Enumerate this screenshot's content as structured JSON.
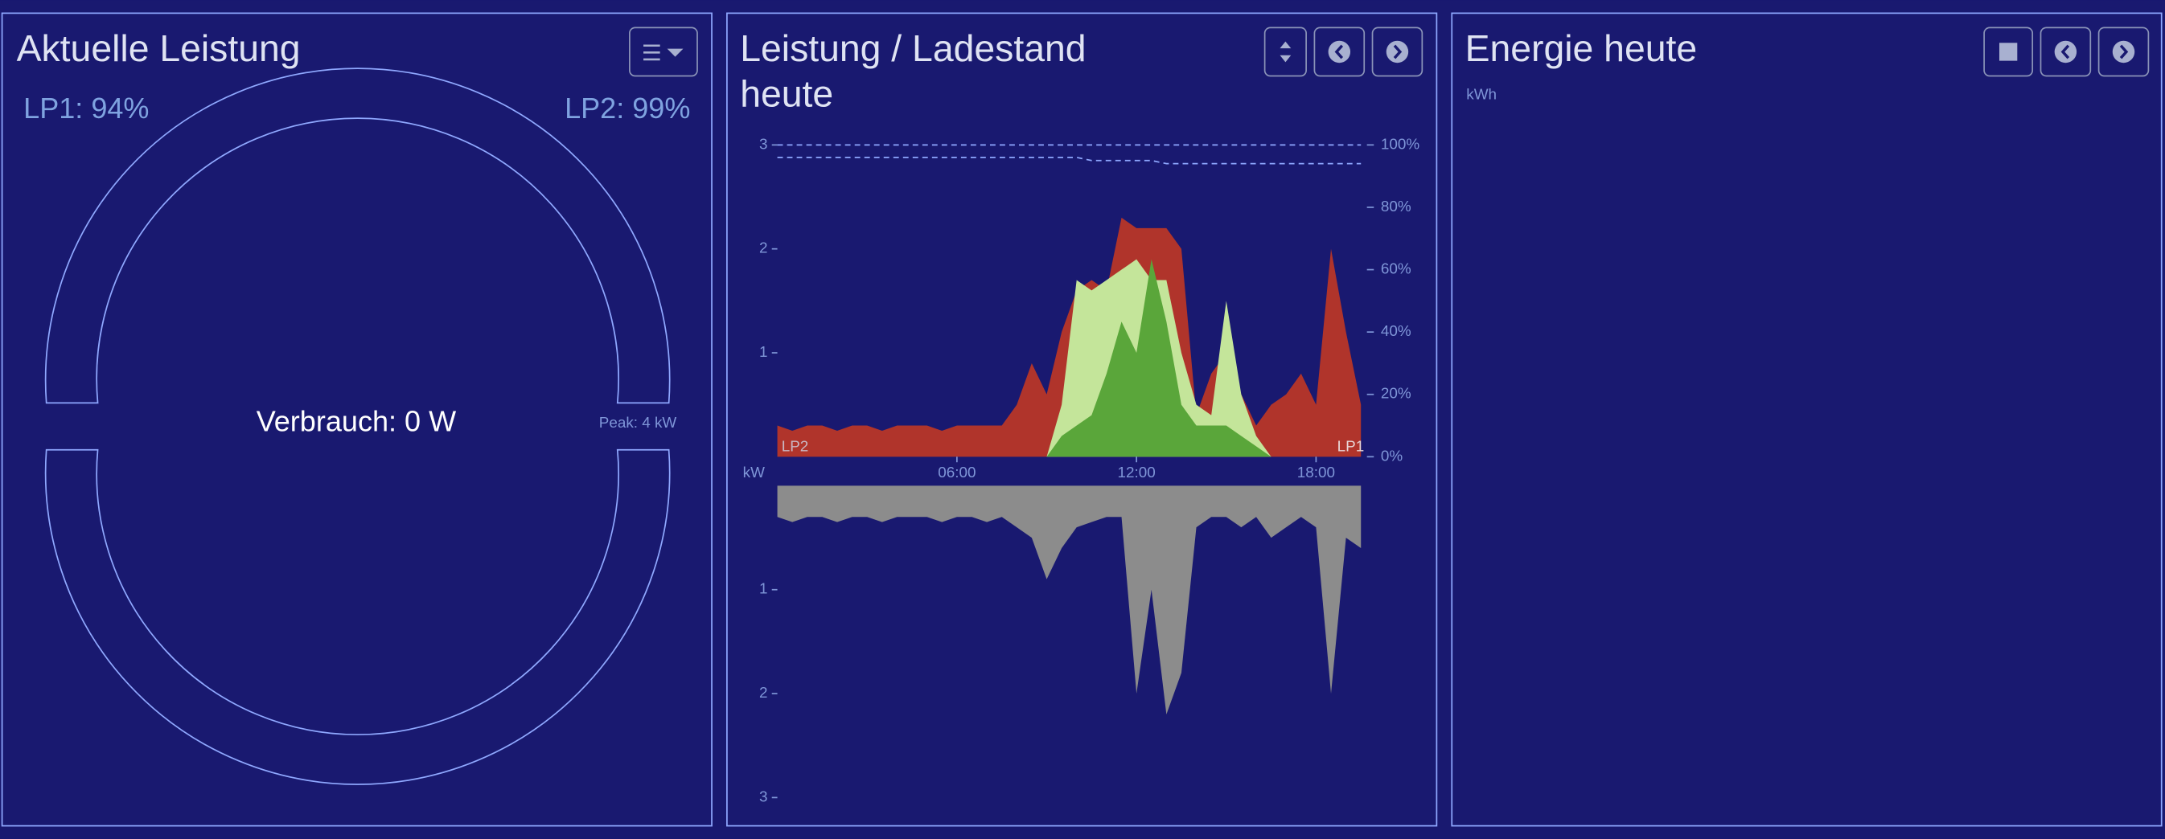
{
  "panels": {
    "power": {
      "title": "Aktuelle Leistung",
      "lp1": "LP1: 94%",
      "lp2": "LP2: 99%",
      "center": "Verbrauch: 0 W",
      "peak": "Peak: 4 kW"
    },
    "energy": {
      "title": "Energie heute",
      "unit": "kWh"
    }
  },
  "chart_data": {
    "type": "area",
    "title_lines": [
      "Leistung / Ladestand",
      "heute"
    ],
    "y_unit": "kW",
    "lp2_label": "LP2",
    "lp1_label": "LP1",
    "x": [
      0,
      0.5,
      1,
      1.5,
      2,
      2.5,
      3,
      3.5,
      4,
      4.5,
      5,
      5.5,
      6,
      6.5,
      7,
      7.5,
      8,
      8.5,
      9,
      9.5,
      10,
      10.5,
      11,
      11.5,
      12,
      12.5,
      13,
      13.5,
      14,
      14.5,
      15,
      15.5,
      16,
      16.5,
      17,
      17.5,
      18,
      18.5,
      19,
      19.5
    ],
    "xlim": [
      0,
      19.7
    ],
    "xticks": [
      {
        "value": 6,
        "label": "06:00"
      },
      {
        "value": 12,
        "label": "12:00"
      },
      {
        "value": 18,
        "label": "18:00"
      }
    ],
    "ylim": [
      0,
      3
    ],
    "yticks": [
      1,
      2,
      3
    ],
    "y2lim": [
      0,
      100
    ],
    "y2ticks": [
      {
        "value": 0,
        "label": "0%"
      },
      {
        "value": 20,
        "label": "20%"
      },
      {
        "value": 40,
        "label": "40%"
      },
      {
        "value": 60,
        "label": "60%"
      },
      {
        "value": 80,
        "label": "80%"
      },
      {
        "value": 100,
        "label": "100%"
      }
    ],
    "series": [
      {
        "color": "#b0342b",
        "values": [
          0.3,
          0.25,
          0.3,
          0.3,
          0.25,
          0.3,
          0.3,
          0.25,
          0.3,
          0.3,
          0.3,
          0.25,
          0.3,
          0.3,
          0.3,
          0.3,
          0.5,
          0.9,
          0.6,
          1.2,
          1.6,
          1.7,
          1.6,
          2.3,
          2.2,
          2.2,
          2.2,
          2.0,
          0.4,
          0.8,
          1.0,
          0.6,
          0.3,
          0.5,
          0.6,
          0.8,
          0.5,
          2.0,
          1.2,
          0.5
        ]
      },
      {
        "color": "#c4e59a",
        "values": [
          0,
          0,
          0,
          0,
          0,
          0,
          0,
          0,
          0,
          0,
          0,
          0,
          0,
          0,
          0,
          0,
          0,
          0,
          0,
          0.5,
          1.7,
          1.6,
          1.7,
          1.8,
          1.9,
          1.7,
          1.7,
          1.0,
          0.5,
          0.4,
          1.5,
          0.6,
          0.2,
          0,
          0,
          0,
          0,
          0,
          0,
          0
        ]
      },
      {
        "color": "#5aa63a",
        "values": [
          0,
          0,
          0,
          0,
          0,
          0,
          0,
          0,
          0,
          0,
          0,
          0,
          0,
          0,
          0,
          0,
          0,
          0,
          0,
          0.2,
          0.3,
          0.4,
          0.8,
          1.3,
          1.0,
          1.9,
          1.3,
          0.5,
          0.3,
          0.3,
          0.3,
          0.2,
          0.1,
          0,
          0,
          0,
          0,
          0,
          0,
          0
        ]
      }
    ],
    "soc": [
      {
        "color": "#8fa8ff",
        "values": [
          100,
          100,
          100,
          100,
          100,
          100,
          100,
          100,
          100,
          100,
          100,
          100,
          100,
          100,
          100,
          100,
          100,
          100,
          100,
          100,
          100,
          100,
          100,
          100,
          100,
          100,
          100,
          100,
          100,
          100,
          100,
          100,
          100,
          100,
          100,
          100,
          100,
          100,
          100,
          100
        ]
      },
      {
        "color": "#8fa8ff",
        "values": [
          96,
          96,
          96,
          96,
          96,
          96,
          96,
          96,
          96,
          96,
          96,
          96,
          96,
          96,
          96,
          96,
          96,
          96,
          96,
          96,
          96,
          95,
          95,
          95,
          95,
          95,
          94,
          94,
          94,
          94,
          94,
          94,
          94,
          94,
          94,
          94,
          94,
          94,
          94,
          94
        ]
      }
    ],
    "lower": {
      "color": "#8c8c8c",
      "ylim": [
        0,
        3
      ],
      "yticks": [
        1,
        2,
        3
      ],
      "values": [
        0.3,
        0.35,
        0.3,
        0.3,
        0.35,
        0.3,
        0.3,
        0.35,
        0.3,
        0.3,
        0.3,
        0.35,
        0.3,
        0.3,
        0.35,
        0.3,
        0.4,
        0.5,
        0.9,
        0.6,
        0.4,
        0.35,
        0.3,
        0.3,
        2.0,
        1.0,
        2.2,
        1.8,
        0.4,
        0.3,
        0.3,
        0.4,
        0.3,
        0.5,
        0.4,
        0.3,
        0.4,
        2.0,
        0.5,
        0.6
      ]
    }
  }
}
